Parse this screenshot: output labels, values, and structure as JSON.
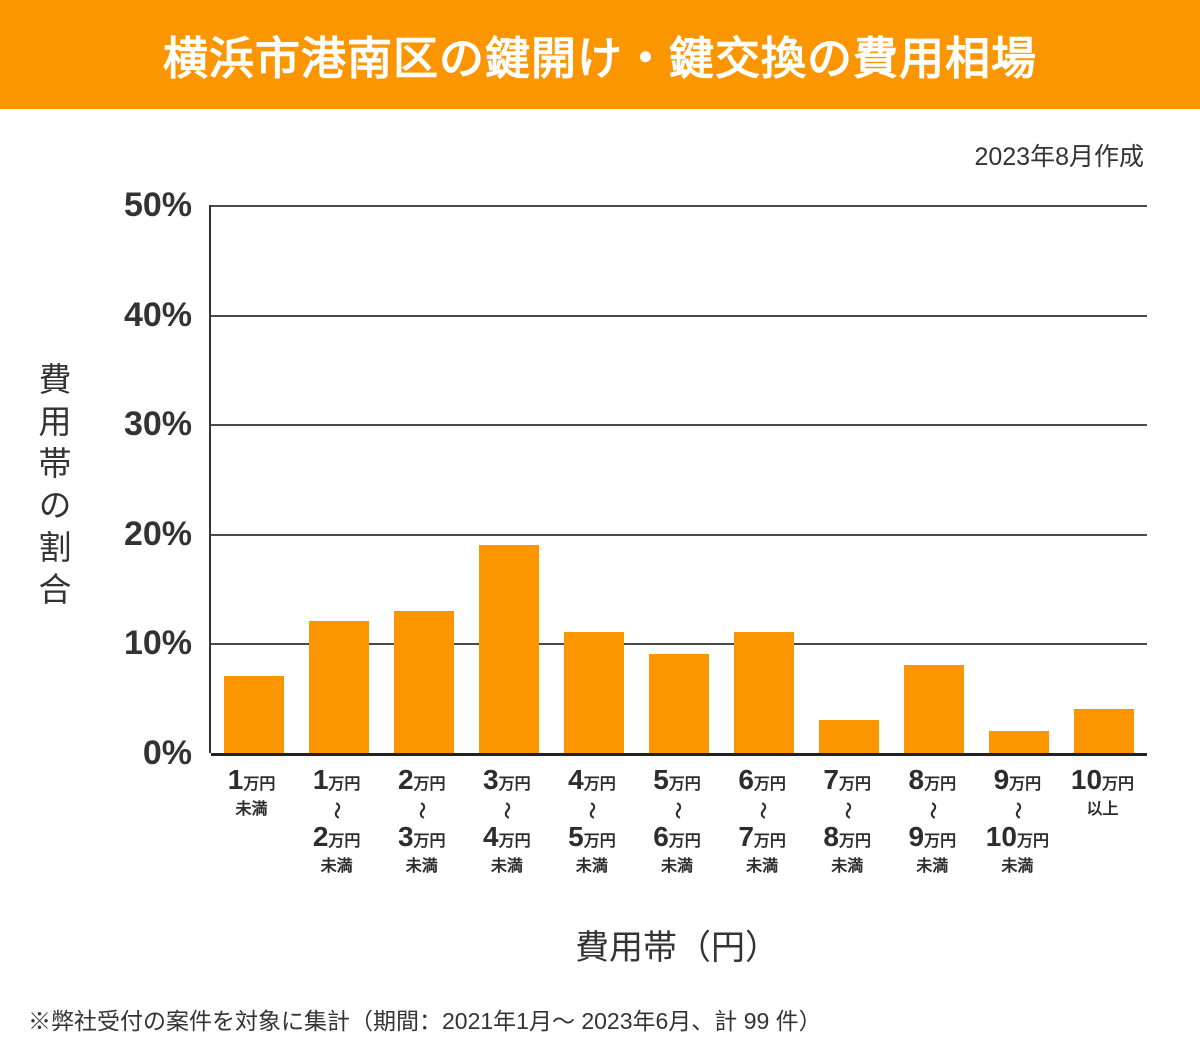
{
  "theme": {
    "accent_orange": "#fb9500",
    "bar_orange": "#fb9500",
    "text_dark": "#333333",
    "grid_gray": "#4a4a4a",
    "title_text": "#ffffff"
  },
  "header": {
    "title": "横浜市港南区の鍵開け・鍵交換の費用相場"
  },
  "meta": {
    "created_note": "2023年8月作成"
  },
  "chart_data": {
    "type": "bar",
    "title": "横浜市港南区の鍵開け・鍵交換の費用相場",
    "xlabel": "費用帯（円）",
    "ylabel": "費用帯の割合",
    "ylim": [
      0,
      50
    ],
    "ytick_values": [
      0,
      10,
      20,
      30,
      40,
      50
    ],
    "ytick_suffix": "%",
    "grid": "horizontal",
    "legend": "none",
    "categories": [
      "1万円未満",
      "1万円〜2万円未満",
      "2万円〜3万円未満",
      "3万円〜4万円未満",
      "4万円〜5万円未満",
      "5万円〜6万円未満",
      "6万円〜7万円未満",
      "7万円〜8万円未満",
      "8万円〜9万円未満",
      "9万円〜10万円未満",
      "10万円以上"
    ],
    "category_parts": [
      {
        "num": "1",
        "unit": "万円",
        "tail": "未満"
      },
      {
        "num": "1",
        "unit": "万円",
        "tilde": "〜",
        "num2": "2",
        "unit2": "万円",
        "tail": "未満"
      },
      {
        "num": "2",
        "unit": "万円",
        "tilde": "〜",
        "num2": "3",
        "unit2": "万円",
        "tail": "未満"
      },
      {
        "num": "3",
        "unit": "万円",
        "tilde": "〜",
        "num2": "4",
        "unit2": "万円",
        "tail": "未満"
      },
      {
        "num": "4",
        "unit": "万円",
        "tilde": "〜",
        "num2": "5",
        "unit2": "万円",
        "tail": "未満"
      },
      {
        "num": "5",
        "unit": "万円",
        "tilde": "〜",
        "num2": "6",
        "unit2": "万円",
        "tail": "未満"
      },
      {
        "num": "6",
        "unit": "万円",
        "tilde": "〜",
        "num2": "7",
        "unit2": "万円",
        "tail": "未満"
      },
      {
        "num": "7",
        "unit": "万円",
        "tilde": "〜",
        "num2": "8",
        "unit2": "万円",
        "tail": "未満"
      },
      {
        "num": "8",
        "unit": "万円",
        "tilde": "〜",
        "num2": "9",
        "unit2": "万円",
        "tail": "未満"
      },
      {
        "num": "9",
        "unit": "万円",
        "tilde": "〜",
        "num2": "10",
        "unit2": "万円",
        "tail": "未満"
      },
      {
        "num": "10",
        "unit": "万円",
        "tail": "以上"
      }
    ],
    "values": [
      7,
      12,
      13,
      19,
      11,
      9,
      11,
      3,
      8,
      2,
      4
    ]
  },
  "footer": {
    "note": "※弊社受付の案件を対象に集計（期間：2021年1月～ 2023年6月、計 99 件）"
  }
}
